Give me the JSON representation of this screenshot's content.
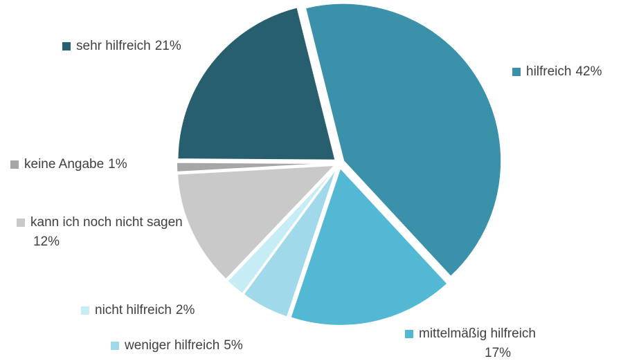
{
  "chart_data": {
    "type": "pie",
    "categories": [
      "hilfreich",
      "mittelmäßig hilfreich",
      "weniger hilfreich",
      "nicht hilfreich",
      "kann ich noch nicht sagen",
      "keine Angabe",
      "sehr hilfreich"
    ],
    "values": [
      42,
      17,
      5,
      2,
      12,
      1,
      21
    ],
    "value_labels": [
      "42%",
      "17%",
      "5%",
      "2%",
      "12%",
      "1%",
      "21%"
    ],
    "colors": [
      "#3a91a9",
      "#52b8d4",
      "#a0d9ea",
      "#c6ecf6",
      "#c9c9c9",
      "#a6a6a6",
      "#275f6f"
    ]
  }
}
